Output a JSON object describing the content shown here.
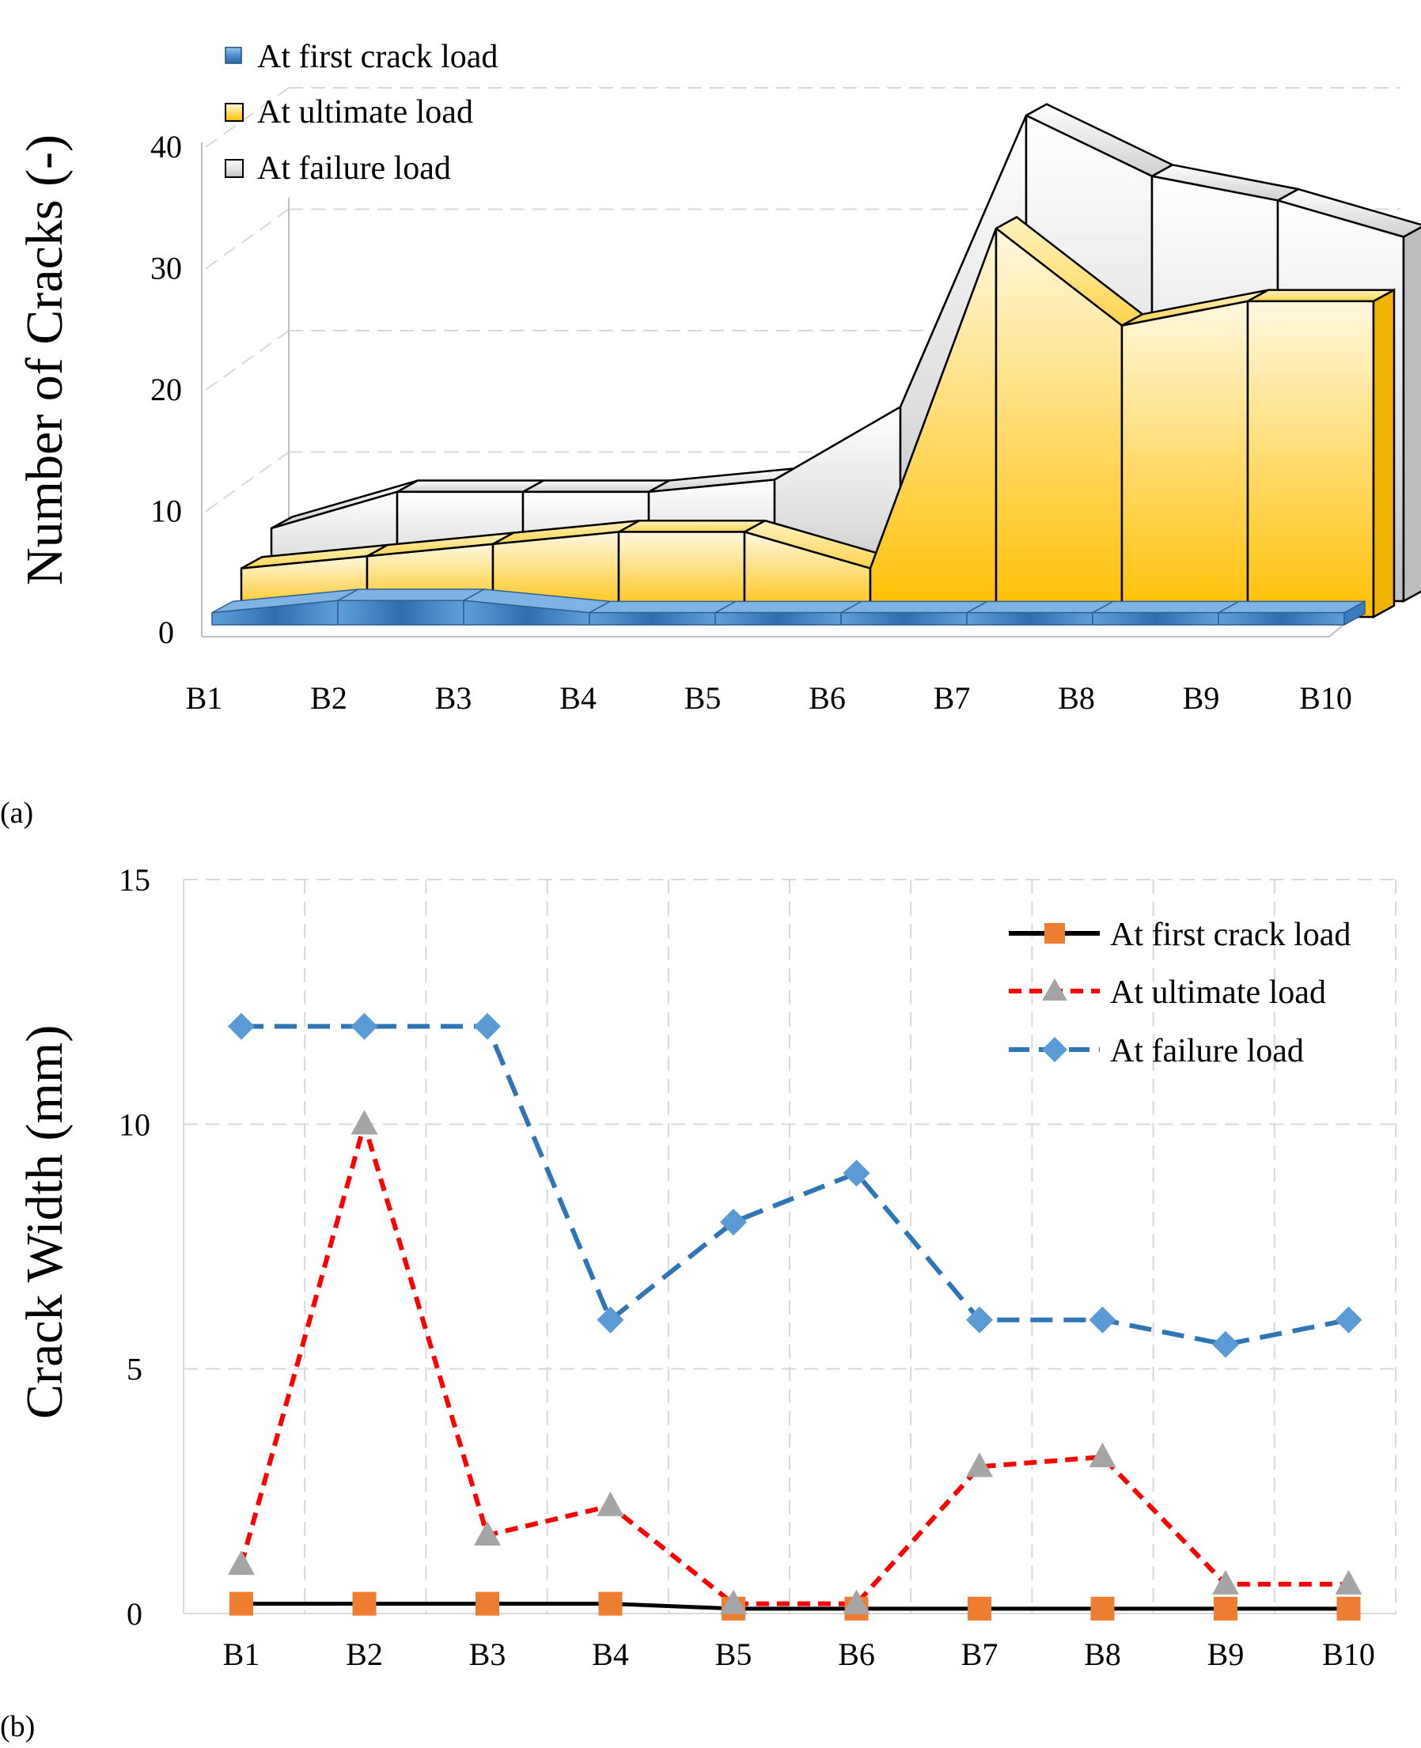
{
  "panel_labels": {
    "a": "(a)",
    "b": "(b)"
  },
  "colors": {
    "first_crack_3d": "#4a8fd0",
    "ultimate_3d": "#ffc20e",
    "failure_3d": "#c9c9c9",
    "first_crack_line": "#000000",
    "first_crack_marker": "#ed7d31",
    "ultimate_line": "#ff0000",
    "ultimate_marker": "#a5a5a5",
    "failure_line": "#2e75b6",
    "failure_marker": "#5b9bd5",
    "grid": "#d9d9d9"
  },
  "chart_data": [
    {
      "id": "a",
      "type": "area",
      "style": "3d-stacked-depth",
      "title": "",
      "xlabel": "",
      "ylabel": "Number of Cracks (-)",
      "ylim": [
        0,
        40
      ],
      "yticks": [
        0,
        10,
        20,
        30,
        40
      ],
      "grid": true,
      "legend_position": "top-left",
      "categories": [
        "B1",
        "B2",
        "B3",
        "B4",
        "B5",
        "B6",
        "B7",
        "B8",
        "B9",
        "B10"
      ],
      "series": [
        {
          "name": "At first crack load",
          "values": [
            1,
            2,
            2,
            1,
            1,
            1,
            1,
            1,
            1,
            1
          ]
        },
        {
          "name": "At ultimate load",
          "values": [
            4,
            5,
            6,
            7,
            7,
            4,
            32,
            24,
            26,
            26
          ]
        },
        {
          "name": "At failure load",
          "values": [
            6,
            9,
            9,
            9,
            10,
            16,
            40,
            35,
            33,
            30
          ]
        }
      ]
    },
    {
      "id": "b",
      "type": "line",
      "title": "",
      "xlabel": "",
      "ylabel": "Crack Width (mm)",
      "ylim": [
        0,
        15
      ],
      "yticks": [
        0,
        5,
        10,
        15
      ],
      "grid": true,
      "legend_position": "top-right",
      "categories": [
        "B1",
        "B2",
        "B3",
        "B4",
        "B5",
        "B6",
        "B7",
        "B8",
        "B9",
        "B10"
      ],
      "series": [
        {
          "name": "At first crack load",
          "marker": "square",
          "line": "solid",
          "values": [
            0.2,
            0.2,
            0.2,
            0.2,
            0.1,
            0.1,
            0.1,
            0.1,
            0.1,
            0.1
          ]
        },
        {
          "name": "At ultimate load",
          "marker": "triangle",
          "line": "dashed",
          "values": [
            1.0,
            10.0,
            1.6,
            2.2,
            0.2,
            0.2,
            3.0,
            3.2,
            0.6,
            0.6
          ]
        },
        {
          "name": "At failure load",
          "marker": "diamond",
          "line": "dashed",
          "values": [
            12.0,
            12.0,
            12.0,
            6.0,
            8.0,
            9.0,
            6.0,
            6.0,
            5.5,
            6.0
          ]
        }
      ]
    }
  ]
}
